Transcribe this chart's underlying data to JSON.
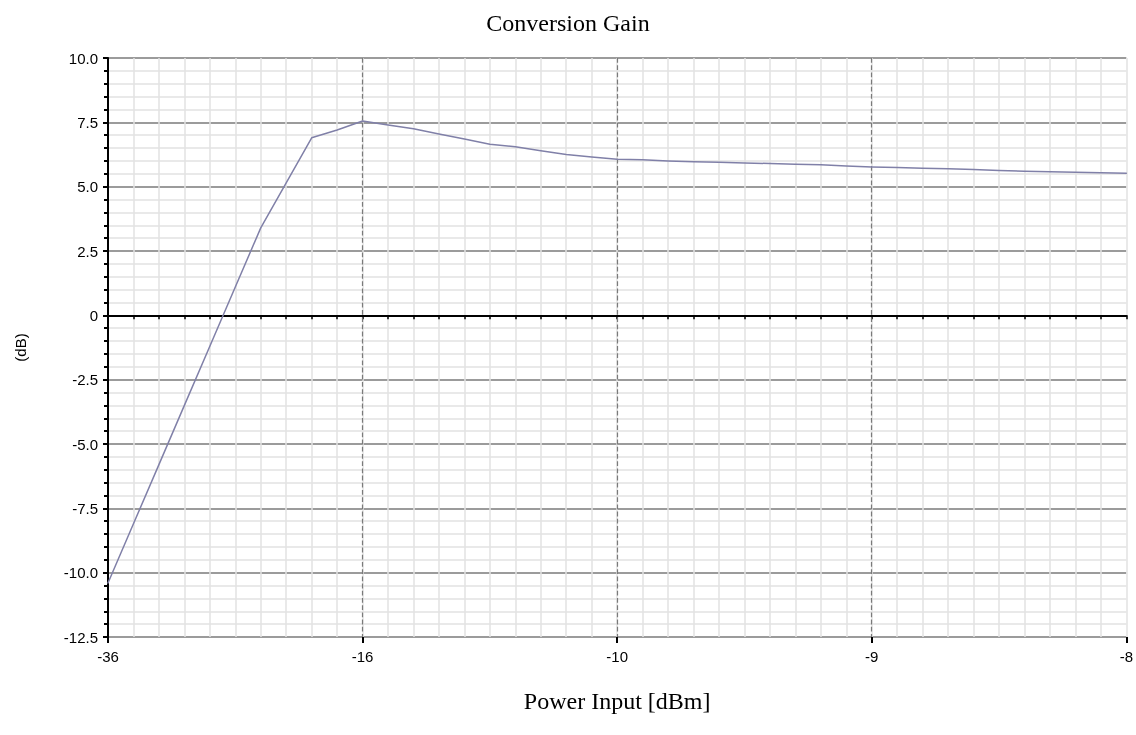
{
  "chart_data": {
    "type": "line",
    "title": "Conversion Gain",
    "xlabel": "Power Input [dBm]",
    "ylabel": "(dB)",
    "categories": [
      "-36",
      null,
      null,
      null,
      null,
      null,
      null,
      null,
      null,
      null,
      "-16",
      null,
      null,
      null,
      null,
      null,
      null,
      null,
      null,
      null,
      "-10",
      null,
      null,
      null,
      null,
      null,
      null,
      null,
      null,
      null,
      "-9",
      null,
      null,
      null,
      null,
      null,
      null,
      null,
      null,
      null,
      "-8"
    ],
    "series": [
      {
        "color": "#8080a8",
        "values": [
          -10.4,
          -8.1,
          -5.8,
          -3.5,
          -1.2,
          1.1,
          3.4,
          5.15,
          6.9,
          7.2,
          7.55,
          7.4,
          7.25,
          7.05,
          6.85,
          6.65,
          6.55,
          6.4,
          6.25,
          6.15,
          6.07,
          6.05,
          6.0,
          5.97,
          5.95,
          5.92,
          5.9,
          5.87,
          5.85,
          5.8,
          5.76,
          5.74,
          5.72,
          5.7,
          5.67,
          5.63,
          5.6,
          5.58,
          5.56,
          5.54,
          5.52
        ]
      }
    ],
    "ylim": [
      -12.5,
      10
    ],
    "yticks": [
      -12.5,
      {
        "value": -10,
        "label": "-10.0"
      },
      -7.5,
      {
        "value": -5,
        "label": "-5.0"
      },
      -2.5,
      0,
      2.5,
      {
        "value": 5,
        "label": "5.0"
      },
      7.5,
      {
        "value": 10,
        "label": "10.0"
      }
    ],
    "grid": true,
    "marker": "none",
    "line_style": "solid"
  }
}
